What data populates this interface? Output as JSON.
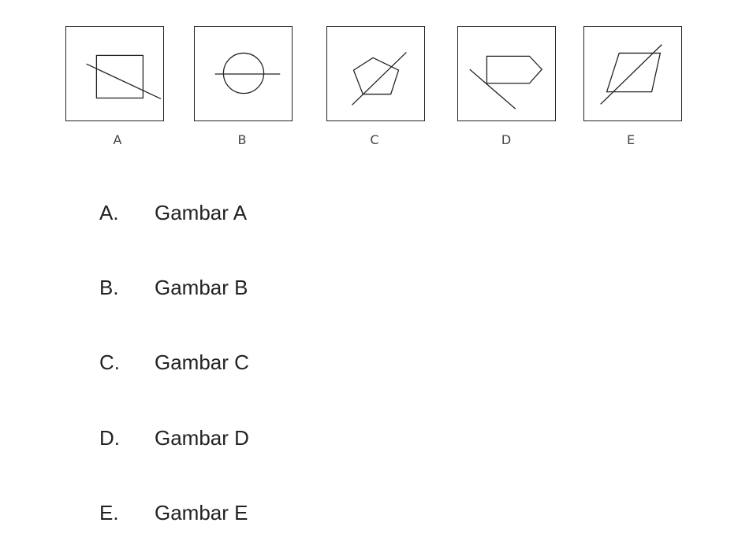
{
  "figures": [
    {
      "label": "A",
      "icon": "square-with-diagonal-line"
    },
    {
      "label": "B",
      "icon": "circle-with-horizontal-line"
    },
    {
      "label": "C",
      "icon": "pentagon-with-diagonal-line"
    },
    {
      "label": "D",
      "icon": "arrow-pentagon-with-diagonal-line"
    },
    {
      "label": "E",
      "icon": "parallelogram-with-diagonal-line"
    }
  ],
  "options": [
    {
      "letter": "A.",
      "text": "Gambar A"
    },
    {
      "letter": "B.",
      "text": "Gambar B"
    },
    {
      "letter": "C.",
      "text": "Gambar C"
    },
    {
      "letter": "D.",
      "text": "Gambar D"
    },
    {
      "letter": "E.",
      "text": "Gambar E"
    }
  ]
}
